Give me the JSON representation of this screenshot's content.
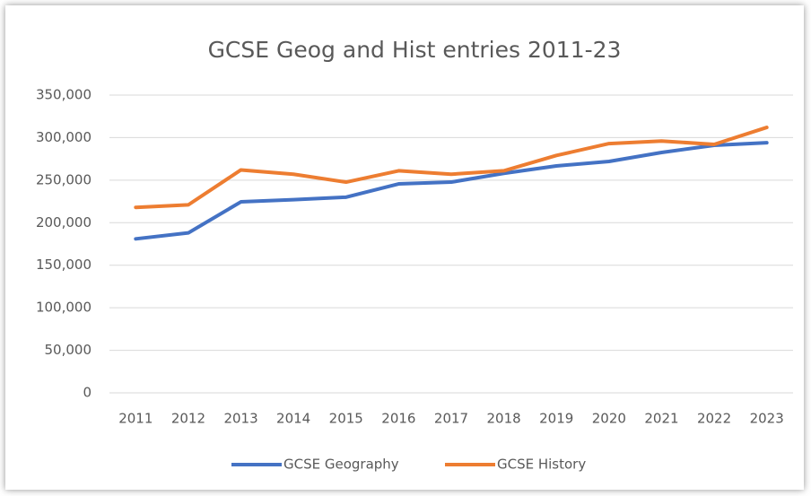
{
  "chart_data": {
    "type": "line",
    "title": "GCSE Geog and Hist entries 2011-23",
    "categories": [
      "2011",
      "2012",
      "2013",
      "2014",
      "2015",
      "2016",
      "2017",
      "2018",
      "2019",
      "2020",
      "2021",
      "2022",
      "2023"
    ],
    "series": [
      {
        "name": "GCSE Geography",
        "color": "#4472c4",
        "values": [
          181000,
          188000,
          224500,
          227000,
          230000,
          245600,
          247700,
          258000,
          266700,
          272000,
          282500,
          291000,
          294000
        ]
      },
      {
        "name": "GCSE History",
        "color": "#ed7d31",
        "values": [
          218000,
          221000,
          262000,
          257000,
          247700,
          261000,
          257000,
          261000,
          279000,
          293000,
          296000,
          292000,
          312000
        ]
      }
    ],
    "ylim": [
      0,
      350000
    ],
    "yticks": [
      0,
      {
        "value": 50000,
        "label": "50,000"
      },
      {
        "value": 100000,
        "label": "100,000"
      },
      {
        "value": 150000,
        "label": "150,000"
      },
      {
        "value": 200000,
        "label": "200,000"
      },
      {
        "value": 250000,
        "label": "250,000"
      },
      {
        "value": 300000,
        "label": "300,000"
      },
      {
        "value": 350000,
        "label": "350,000"
      }
    ],
    "grid": true,
    "legend": "bottom"
  }
}
